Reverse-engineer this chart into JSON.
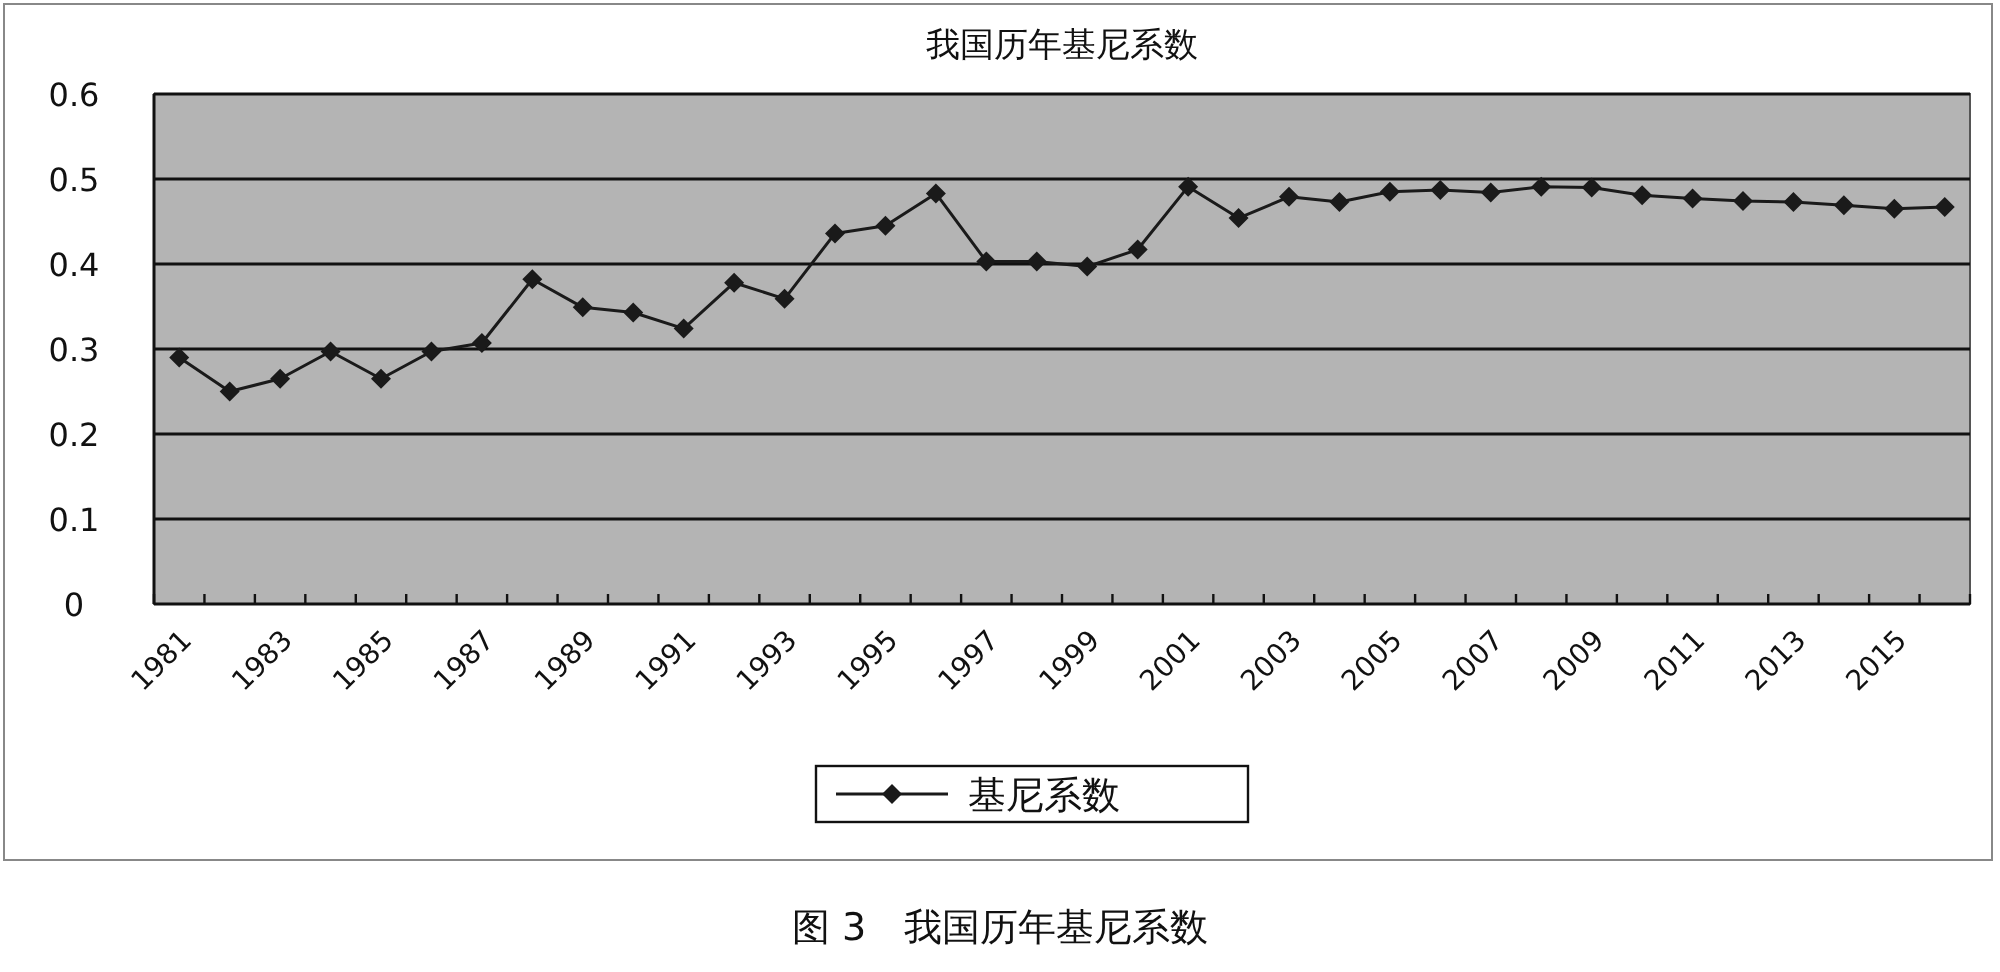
{
  "chart_data": {
    "type": "line",
    "title": "我国历年基尼系数",
    "categories": [
      "1981",
      null,
      "1983",
      null,
      "1985",
      null,
      "1987",
      null,
      "1989",
      null,
      "1991",
      null,
      "1993",
      null,
      "1995",
      null,
      "1997",
      null,
      "1999",
      null,
      "2001",
      null,
      "2003",
      null,
      "2005",
      null,
      "2007",
      null,
      "2009",
      null,
      "2011",
      null,
      "2013",
      null,
      "2015",
      null
    ],
    "series": [
      {
        "name": "基尼系数",
        "color": "#1a1a1a",
        "values": [
          0.29,
          0.25,
          0.265,
          0.297,
          0.265,
          0.297,
          0.307,
          0.382,
          0.349,
          0.343,
          0.324,
          0.378,
          0.359,
          0.436,
          0.445,
          0.483,
          0.403,
          0.403,
          0.397,
          0.417,
          0.491,
          0.454,
          0.479,
          0.473,
          0.485,
          0.487,
          0.484,
          0.491,
          0.49,
          0.481,
          0.477,
          0.474,
          0.473,
          0.469,
          0.465,
          0.467
        ]
      }
    ],
    "ylim": [
      0,
      0.6
    ],
    "yticks": [
      0,
      0.1,
      0.2,
      0.3,
      0.4,
      0.5,
      0.6
    ],
    "grid": "y",
    "legend": "bottom",
    "marker": "diamond",
    "line_style": "solid",
    "annotations": [
      "图 3　我国历年基尼系数"
    ]
  }
}
